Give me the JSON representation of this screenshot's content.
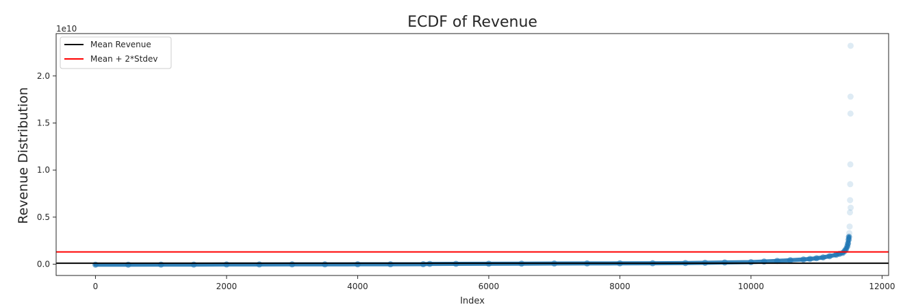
{
  "chart_data": {
    "type": "scatter",
    "title": "ECDF of Revenue",
    "xlabel": "Index",
    "ylabel": "Revenue Distribution",
    "y_scale_label": "1e10",
    "xlim": [
      -600,
      12100
    ],
    "ylim": [
      -0.12,
      2.45
    ],
    "x_ticks": [
      0,
      2000,
      4000,
      6000,
      8000,
      10000,
      12000
    ],
    "x_tick_labels": [
      "0",
      "2000",
      "4000",
      "6000",
      "8000",
      "10000",
      "12000"
    ],
    "y_ticks": [
      0.0,
      0.5,
      1.0,
      1.5,
      2.0
    ],
    "y_tick_labels": [
      "0.0",
      "0.5",
      "1.0",
      "1.5",
      "2.0"
    ],
    "grid": false,
    "legend_position": "top-left",
    "series": [
      {
        "name": "Revenue",
        "color": "#1f77b4",
        "alpha": 0.15,
        "x": [
          0,
          500,
          1000,
          1500,
          2000,
          2500,
          3000,
          3500,
          4000,
          4500,
          5000,
          5100,
          5500,
          6000,
          6500,
          7000,
          7500,
          8000,
          8500,
          9000,
          9300,
          9600,
          10000,
          10200,
          10400,
          10600,
          10800,
          10900,
          11000,
          11100,
          11200,
          11300,
          11350,
          11400,
          11430,
          11450,
          11470,
          11480,
          11490,
          11495,
          11500,
          11505,
          11510,
          11512,
          11514,
          11516,
          11518,
          11519,
          11520,
          11521
        ],
        "y": [
          -0.005,
          -0.005,
          -0.004,
          -0.004,
          -0.003,
          -0.003,
          -0.002,
          -0.002,
          -0.001,
          -0.001,
          0.0,
          0.003,
          0.004,
          0.005,
          0.006,
          0.007,
          0.008,
          0.009,
          0.01,
          0.012,
          0.015,
          0.018,
          0.022,
          0.028,
          0.035,
          0.042,
          0.05,
          0.056,
          0.063,
          0.072,
          0.085,
          0.1,
          0.11,
          0.12,
          0.14,
          0.16,
          0.19,
          0.22,
          0.26,
          0.29,
          0.33,
          0.4,
          0.55,
          0.68,
          0.85,
          1.06,
          1.6,
          1.78,
          2.32,
          0.6
        ]
      }
    ],
    "lines": [
      {
        "name": "Mean Revenue",
        "y": 0.01,
        "color": "#000000"
      },
      {
        "name": "Mean + 2*Stdev",
        "y": 0.13,
        "color": "#ff0000"
      }
    ]
  }
}
